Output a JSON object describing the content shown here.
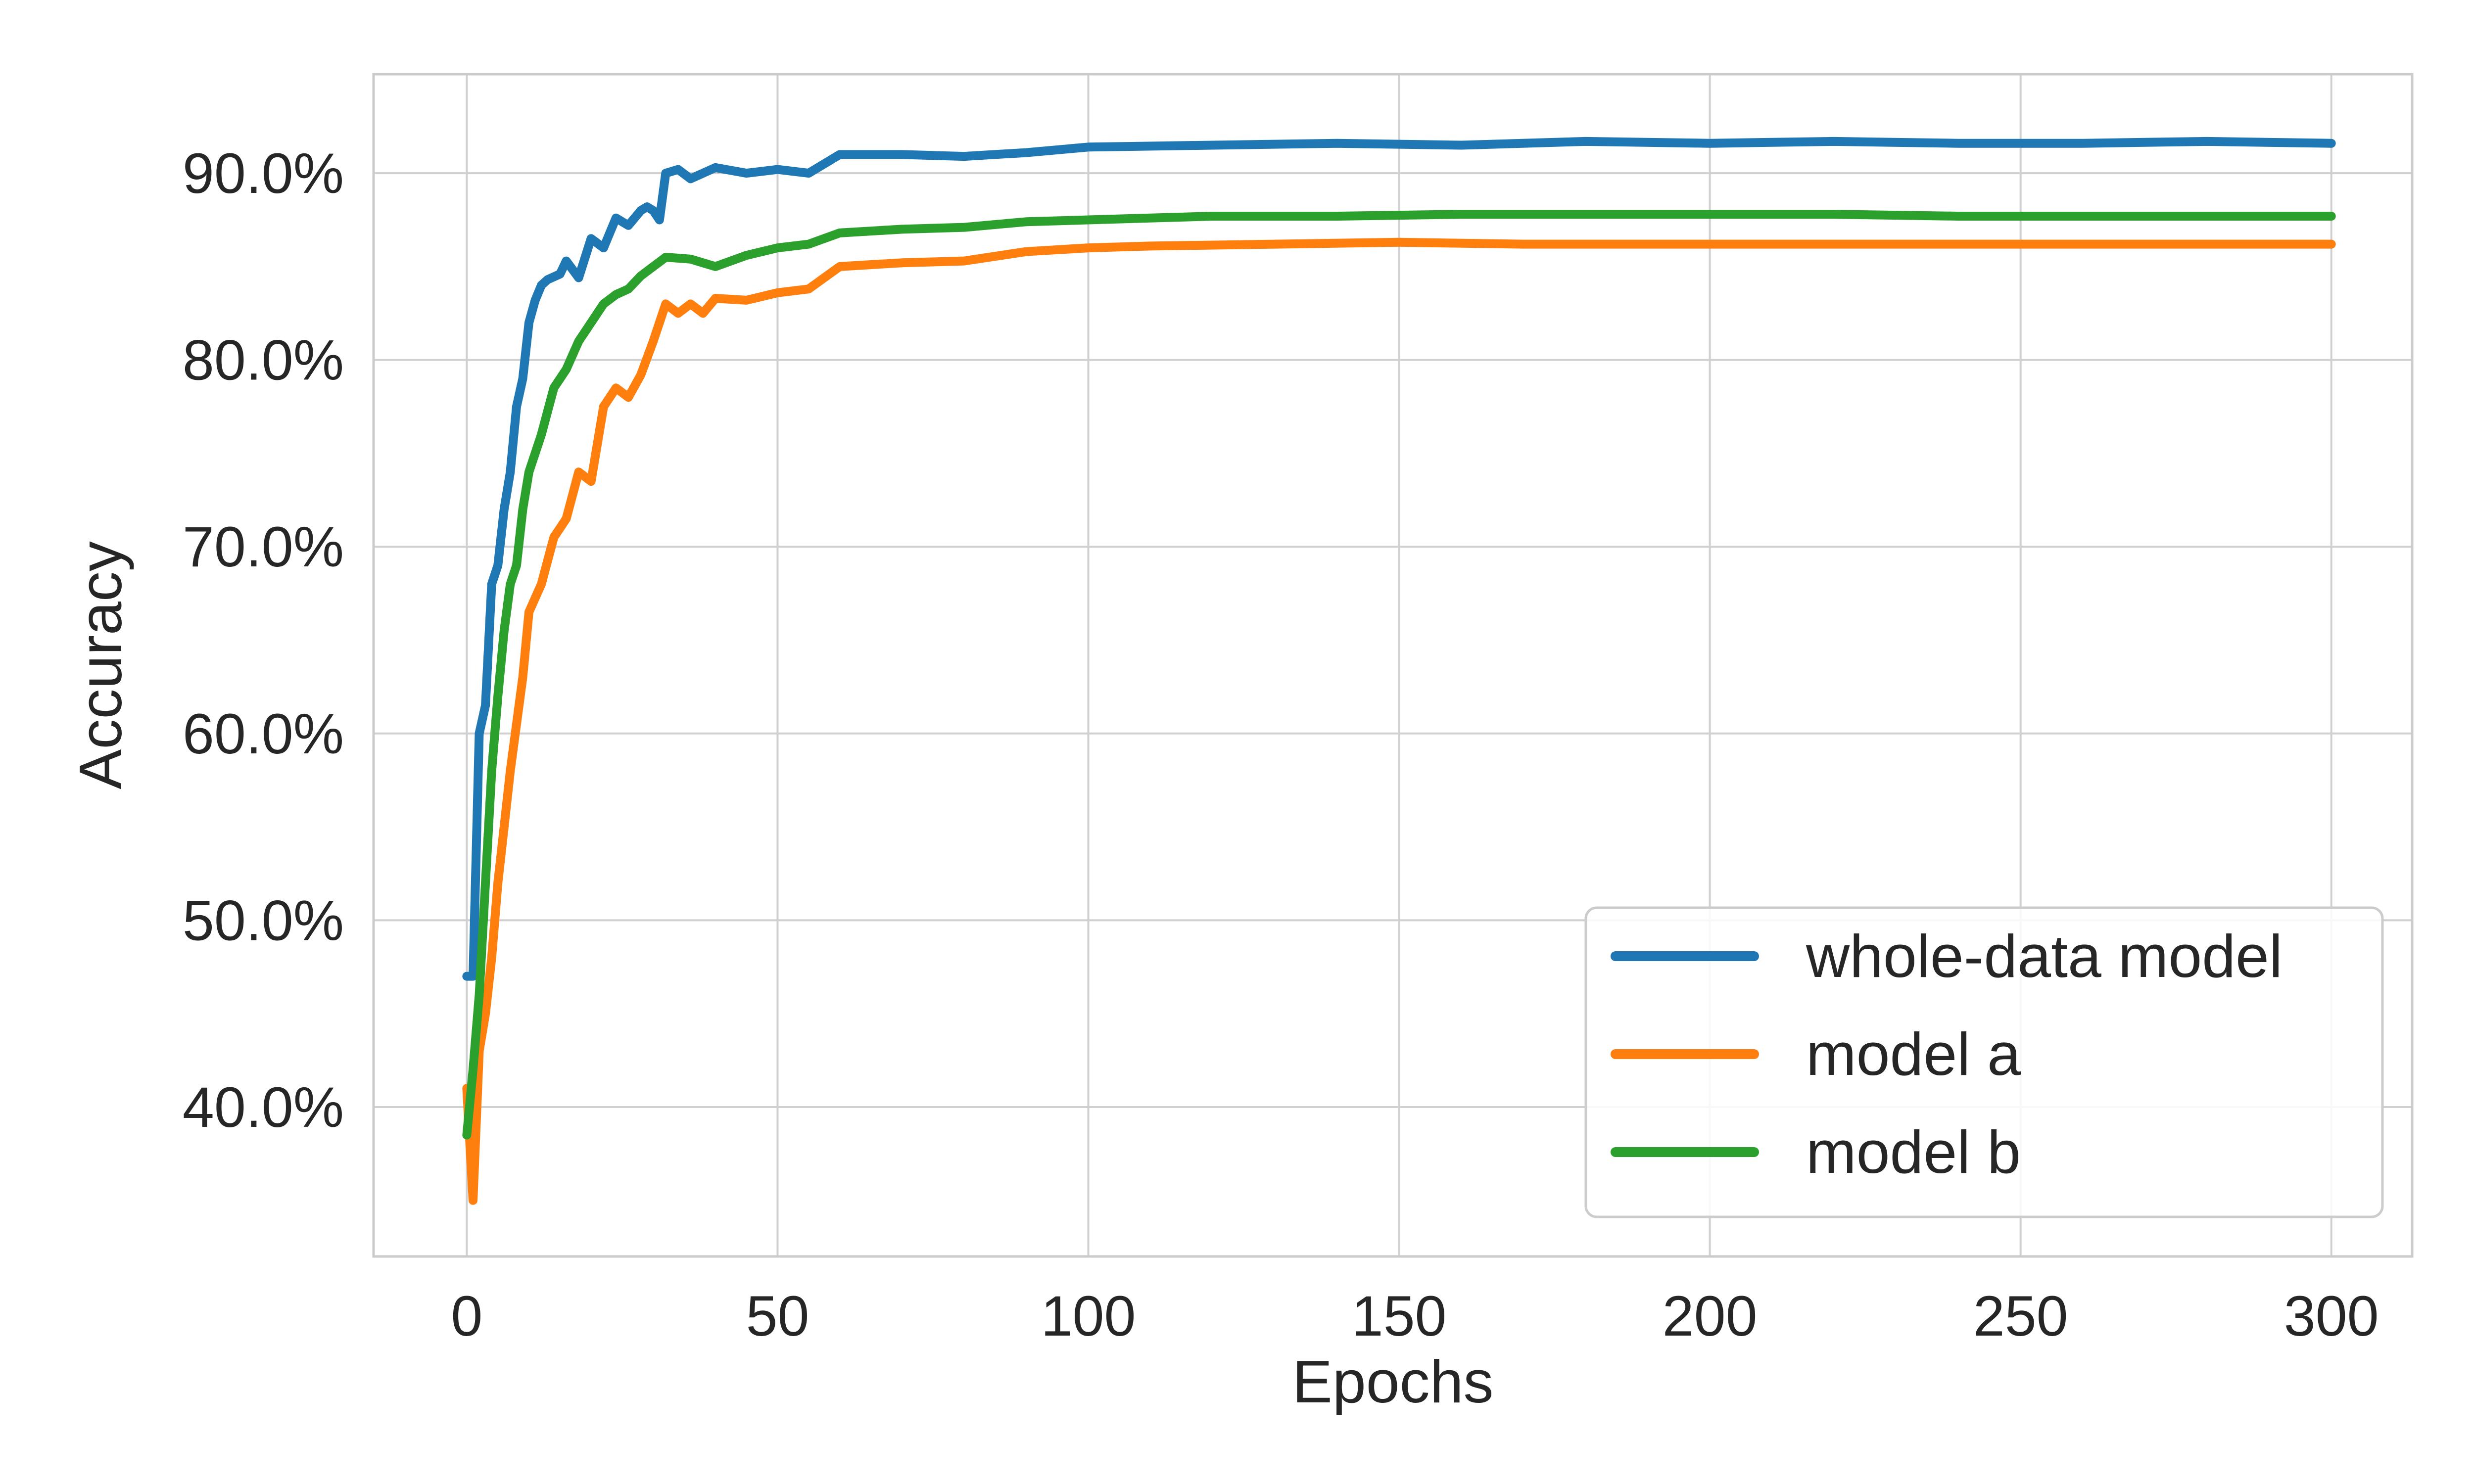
{
  "chart_data": {
    "type": "line",
    "xlabel": "Epochs",
    "ylabel": "Accuracy",
    "xlim": [
      -15,
      313
    ],
    "ylim": [
      0.32,
      0.953
    ],
    "x_ticks": [
      0,
      50,
      100,
      150,
      200,
      250,
      300
    ],
    "x_tick_labels": [
      "0",
      "50",
      "100",
      "150",
      "200",
      "250",
      "300"
    ],
    "y_ticks": [
      0.4,
      0.5,
      0.6,
      0.7,
      0.8,
      0.9
    ],
    "y_tick_labels": [
      "40.0%",
      "50.0%",
      "60.0%",
      "70.0%",
      "80.0%",
      "90.0%"
    ],
    "grid": true,
    "legend_position": "lower-right",
    "series": [
      {
        "name": "whole-data model",
        "color": "#1f77b4",
        "points": [
          [
            0,
            0.47
          ],
          [
            1,
            0.47
          ],
          [
            2,
            0.6
          ],
          [
            3,
            0.615
          ],
          [
            4,
            0.68
          ],
          [
            5,
            0.69
          ],
          [
            6,
            0.72
          ],
          [
            7,
            0.74
          ],
          [
            8,
            0.775
          ],
          [
            9,
            0.79
          ],
          [
            10,
            0.82
          ],
          [
            11,
            0.832
          ],
          [
            12,
            0.84
          ],
          [
            13,
            0.843
          ],
          [
            15,
            0.846
          ],
          [
            16,
            0.853
          ],
          [
            18,
            0.844
          ],
          [
            20,
            0.865
          ],
          [
            22,
            0.86
          ],
          [
            24,
            0.876
          ],
          [
            26,
            0.872
          ],
          [
            28,
            0.88
          ],
          [
            29,
            0.882
          ],
          [
            30,
            0.88
          ],
          [
            31,
            0.875
          ],
          [
            32,
            0.9
          ],
          [
            34,
            0.902
          ],
          [
            36,
            0.897
          ],
          [
            40,
            0.903
          ],
          [
            45,
            0.9
          ],
          [
            50,
            0.902
          ],
          [
            55,
            0.9
          ],
          [
            60,
            0.91
          ],
          [
            70,
            0.91
          ],
          [
            80,
            0.909
          ],
          [
            90,
            0.911
          ],
          [
            100,
            0.914
          ],
          [
            120,
            0.915
          ],
          [
            140,
            0.916
          ],
          [
            160,
            0.915
          ],
          [
            180,
            0.917
          ],
          [
            200,
            0.916
          ],
          [
            220,
            0.917
          ],
          [
            240,
            0.916
          ],
          [
            260,
            0.916
          ],
          [
            280,
            0.917
          ],
          [
            300,
            0.916
          ]
        ]
      },
      {
        "name": "model a",
        "color": "#ff7f0e",
        "points": [
          [
            0,
            0.41
          ],
          [
            1,
            0.35
          ],
          [
            2,
            0.43
          ],
          [
            3,
            0.45
          ],
          [
            4,
            0.48
          ],
          [
            5,
            0.52
          ],
          [
            6,
            0.55
          ],
          [
            7,
            0.58
          ],
          [
            8,
            0.605
          ],
          [
            9,
            0.63
          ],
          [
            10,
            0.665
          ],
          [
            12,
            0.68
          ],
          [
            14,
            0.705
          ],
          [
            16,
            0.715
          ],
          [
            18,
            0.74
          ],
          [
            20,
            0.735
          ],
          [
            22,
            0.775
          ],
          [
            24,
            0.785
          ],
          [
            26,
            0.78
          ],
          [
            28,
            0.792
          ],
          [
            30,
            0.81
          ],
          [
            32,
            0.83
          ],
          [
            34,
            0.825
          ],
          [
            36,
            0.83
          ],
          [
            38,
            0.825
          ],
          [
            40,
            0.833
          ],
          [
            45,
            0.832
          ],
          [
            50,
            0.836
          ],
          [
            55,
            0.838
          ],
          [
            60,
            0.85
          ],
          [
            70,
            0.852
          ],
          [
            80,
            0.853
          ],
          [
            90,
            0.858
          ],
          [
            100,
            0.86
          ],
          [
            110,
            0.861
          ],
          [
            130,
            0.862
          ],
          [
            150,
            0.863
          ],
          [
            170,
            0.862
          ],
          [
            200,
            0.862
          ],
          [
            230,
            0.862
          ],
          [
            260,
            0.862
          ],
          [
            280,
            0.862
          ],
          [
            300,
            0.862
          ]
        ]
      },
      {
        "name": "model b",
        "color": "#2ca02c",
        "points": [
          [
            0,
            0.385
          ],
          [
            1,
            0.42
          ],
          [
            2,
            0.46
          ],
          [
            3,
            0.52
          ],
          [
            4,
            0.58
          ],
          [
            5,
            0.62
          ],
          [
            6,
            0.655
          ],
          [
            7,
            0.68
          ],
          [
            8,
            0.69
          ],
          [
            9,
            0.72
          ],
          [
            10,
            0.74
          ],
          [
            12,
            0.76
          ],
          [
            14,
            0.785
          ],
          [
            16,
            0.795
          ],
          [
            18,
            0.81
          ],
          [
            20,
            0.82
          ],
          [
            22,
            0.83
          ],
          [
            24,
            0.835
          ],
          [
            26,
            0.838
          ],
          [
            28,
            0.845
          ],
          [
            30,
            0.85
          ],
          [
            32,
            0.855
          ],
          [
            36,
            0.854
          ],
          [
            40,
            0.85
          ],
          [
            45,
            0.856
          ],
          [
            50,
            0.86
          ],
          [
            55,
            0.862
          ],
          [
            60,
            0.868
          ],
          [
            70,
            0.87
          ],
          [
            80,
            0.871
          ],
          [
            90,
            0.874
          ],
          [
            100,
            0.875
          ],
          [
            120,
            0.877
          ],
          [
            140,
            0.877
          ],
          [
            160,
            0.878
          ],
          [
            180,
            0.878
          ],
          [
            200,
            0.878
          ],
          [
            220,
            0.878
          ],
          [
            240,
            0.877
          ],
          [
            260,
            0.877
          ],
          [
            280,
            0.877
          ],
          [
            300,
            0.877
          ]
        ]
      }
    ]
  }
}
